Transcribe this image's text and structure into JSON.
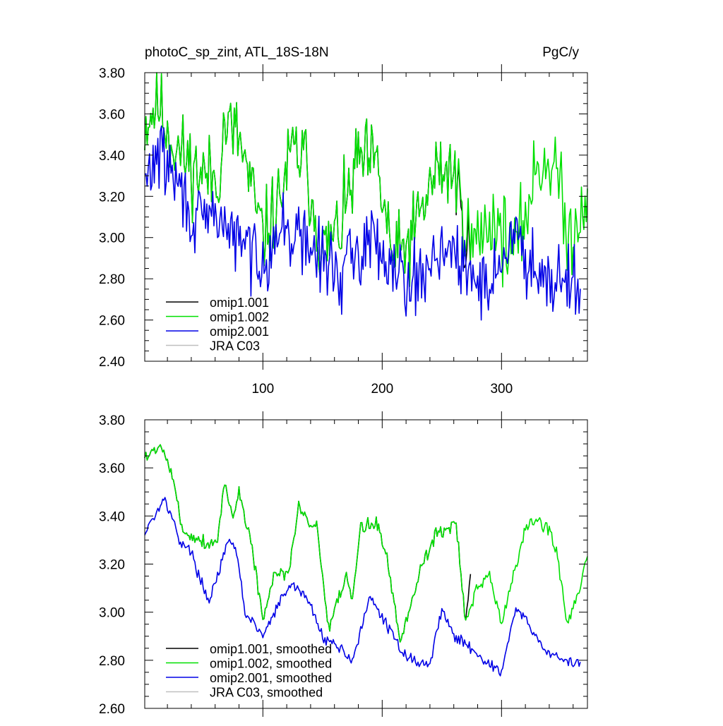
{
  "colors": {
    "omip1_001": "#000000",
    "omip1_002": "#00e000",
    "omip2_001": "#0000e6",
    "jra_c03": "#bfbfbf"
  },
  "chart_data": [
    {
      "type": "line",
      "title": "photoC_sp_zint, ATL_18S-18N",
      "units": "PgC/y",
      "xlabel": "",
      "ylabel": "",
      "xlim": [
        1,
        372
      ],
      "ylim": [
        2.4,
        3.8
      ],
      "xticks": [
        100,
        200,
        300
      ],
      "xtick_labels": [
        "100",
        "200",
        "300"
      ],
      "yticks": [
        2.4,
        2.6,
        2.8,
        3.0,
        3.2,
        3.4,
        3.6,
        3.8
      ],
      "ytick_labels": [
        "2.40",
        "2.60",
        "2.80",
        "3.00",
        "3.20",
        "3.40",
        "3.60",
        "3.80"
      ],
      "legend": {
        "placement": "bottom-left",
        "entries": [
          "omip1.001",
          "omip1.002",
          "omip2.001",
          "JRA C03"
        ]
      },
      "series": [
        {
          "name": "omip1.001",
          "key": "omip1_001",
          "n": 274,
          "seed": 11,
          "anchors": [
            [
              1,
              3.55
            ],
            [
              12,
              3.66
            ],
            [
              25,
              3.45
            ],
            [
              45,
              3.32
            ],
            [
              62,
              3.28
            ],
            [
              68,
              3.55
            ],
            [
              80,
              3.48
            ],
            [
              100,
              3.0
            ],
            [
              112,
              3.15
            ],
            [
              125,
              3.42
            ],
            [
              135,
              3.38
            ],
            [
              150,
              2.92
            ],
            [
              165,
              3.05
            ],
            [
              180,
              3.38
            ],
            [
              195,
              3.35
            ],
            [
              210,
              2.88
            ],
            [
              225,
              3.0
            ],
            [
              245,
              3.32
            ],
            [
              260,
              3.33
            ],
            [
              272,
              2.95
            ]
          ],
          "noise": 0.2
        },
        {
          "name": "omip1.002",
          "key": "omip1_002",
          "n": 372,
          "seed": 11,
          "anchors": [
            [
              1,
              3.55
            ],
            [
              12,
              3.66
            ],
            [
              25,
              3.45
            ],
            [
              45,
              3.32
            ],
            [
              62,
              3.28
            ],
            [
              68,
              3.55
            ],
            [
              80,
              3.48
            ],
            [
              100,
              3.0
            ],
            [
              112,
              3.15
            ],
            [
              125,
              3.42
            ],
            [
              135,
              3.38
            ],
            [
              150,
              2.92
            ],
            [
              165,
              3.05
            ],
            [
              180,
              3.38
            ],
            [
              195,
              3.35
            ],
            [
              210,
              2.88
            ],
            [
              225,
              3.0
            ],
            [
              245,
              3.32
            ],
            [
              260,
              3.33
            ],
            [
              275,
              2.95
            ],
            [
              292,
              3.1
            ],
            [
              312,
              2.92
            ],
            [
              330,
              3.35
            ],
            [
              345,
              3.38
            ],
            [
              355,
              2.98
            ],
            [
              372,
              3.22
            ]
          ],
          "noise": 0.2
        },
        {
          "name": "omip2.001",
          "key": "omip2_001",
          "n": 366,
          "seed": 29,
          "anchors": [
            [
              1,
              3.25
            ],
            [
              12,
              3.42
            ],
            [
              25,
              3.3
            ],
            [
              45,
              3.05
            ],
            [
              62,
              3.12
            ],
            [
              75,
              3.0
            ],
            [
              100,
              2.9
            ],
            [
              118,
              3.05
            ],
            [
              140,
              2.95
            ],
            [
              165,
              2.82
            ],
            [
              190,
              3.0
            ],
            [
              215,
              2.85
            ],
            [
              230,
              2.78
            ],
            [
              250,
              2.98
            ],
            [
              270,
              2.82
            ],
            [
              290,
              2.78
            ],
            [
              310,
              3.0
            ],
            [
              330,
              2.85
            ],
            [
              366,
              2.78
            ]
          ],
          "noise": 0.17
        }
      ]
    },
    {
      "type": "line",
      "title": "",
      "xlabel": "",
      "ylabel": "",
      "xlim": [
        1,
        372
      ],
      "ylim": [
        2.6,
        3.8
      ],
      "xticks": [
        100,
        200,
        300
      ],
      "yticks": [
        2.6,
        2.8,
        3.0,
        3.2,
        3.4,
        3.6,
        3.8
      ],
      "ytick_labels": [
        "2.60",
        "2.80",
        "3.00",
        "3.20",
        "3.40",
        "3.60",
        "3.80"
      ],
      "legend": {
        "placement": "bottom-left",
        "entries": [
          "omip1.001, smoothed",
          "omip1.002, smoothed",
          "omip2.001, smoothed",
          "JRA C03, smoothed"
        ]
      },
      "series": [
        {
          "name": "omip1.001, smoothed",
          "key": "omip1_001",
          "n": 274,
          "seed": 5,
          "anchors": [
            [
              1,
              3.65
            ],
            [
              10,
              3.67
            ],
            [
              16,
              3.7
            ],
            [
              25,
              3.55
            ],
            [
              32,
              3.35
            ],
            [
              40,
              3.32
            ],
            [
              55,
              3.28
            ],
            [
              62,
              3.3
            ],
            [
              68,
              3.55
            ],
            [
              75,
              3.38
            ],
            [
              80,
              3.5
            ],
            [
              90,
              3.3
            ],
            [
              100,
              2.97
            ],
            [
              110,
              3.15
            ],
            [
              122,
              3.17
            ],
            [
              130,
              3.45
            ],
            [
              140,
              3.35
            ],
            [
              145,
              3.38
            ],
            [
              155,
              2.92
            ],
            [
              170,
              3.15
            ],
            [
              175,
              3.05
            ],
            [
              182,
              3.35
            ],
            [
              195,
              3.38
            ],
            [
              205,
              3.2
            ],
            [
              215,
              2.88
            ],
            [
              225,
              3.05
            ],
            [
              232,
              3.18
            ],
            [
              245,
              3.33
            ],
            [
              255,
              3.35
            ],
            [
              262,
              3.37
            ],
            [
              270,
              2.95
            ],
            [
              274,
              3.15
            ]
          ],
          "noise": 0.03
        },
        {
          "name": "omip1.002, smoothed",
          "key": "omip1_002",
          "n": 372,
          "seed": 5,
          "anchors": [
            [
              1,
              3.65
            ],
            [
              10,
              3.67
            ],
            [
              16,
              3.7
            ],
            [
              25,
              3.55
            ],
            [
              32,
              3.35
            ],
            [
              40,
              3.32
            ],
            [
              55,
              3.28
            ],
            [
              62,
              3.3
            ],
            [
              68,
              3.55
            ],
            [
              75,
              3.38
            ],
            [
              80,
              3.5
            ],
            [
              90,
              3.3
            ],
            [
              100,
              2.97
            ],
            [
              110,
              3.15
            ],
            [
              122,
              3.17
            ],
            [
              130,
              3.45
            ],
            [
              140,
              3.35
            ],
            [
              145,
              3.38
            ],
            [
              155,
              2.92
            ],
            [
              170,
              3.15
            ],
            [
              175,
              3.05
            ],
            [
              182,
              3.35
            ],
            [
              195,
              3.38
            ],
            [
              205,
              3.2
            ],
            [
              215,
              2.88
            ],
            [
              225,
              3.05
            ],
            [
              232,
              3.18
            ],
            [
              245,
              3.33
            ],
            [
              255,
              3.35
            ],
            [
              262,
              3.37
            ],
            [
              270,
              2.95
            ],
            [
              280,
              3.1
            ],
            [
              290,
              3.15
            ],
            [
              300,
              2.95
            ],
            [
              310,
              3.15
            ],
            [
              320,
              3.35
            ],
            [
              330,
              3.38
            ],
            [
              340,
              3.35
            ],
            [
              348,
              3.2
            ],
            [
              355,
              2.95
            ],
            [
              365,
              3.1
            ],
            [
              372,
              3.22
            ]
          ],
          "noise": 0.03
        },
        {
          "name": "omip2.001, smoothed",
          "key": "omip2_001",
          "n": 366,
          "seed": 17,
          "anchors": [
            [
              1,
              3.32
            ],
            [
              5,
              3.38
            ],
            [
              10,
              3.4
            ],
            [
              16,
              3.48
            ],
            [
              22,
              3.42
            ],
            [
              30,
              3.3
            ],
            [
              40,
              3.25
            ],
            [
              50,
              3.1
            ],
            [
              55,
              3.05
            ],
            [
              65,
              3.2
            ],
            [
              72,
              3.3
            ],
            [
              78,
              3.25
            ],
            [
              85,
              3.0
            ],
            [
              100,
              2.9
            ],
            [
              115,
              3.05
            ],
            [
              125,
              3.12
            ],
            [
              138,
              3.05
            ],
            [
              150,
              2.9
            ],
            [
              165,
              2.85
            ],
            [
              175,
              2.8
            ],
            [
              190,
              3.06
            ],
            [
              200,
              2.98
            ],
            [
              215,
              2.85
            ],
            [
              225,
              2.8
            ],
            [
              240,
              2.78
            ],
            [
              250,
              3.02
            ],
            [
              260,
              2.9
            ],
            [
              275,
              2.85
            ],
            [
              290,
              2.78
            ],
            [
              300,
              2.75
            ],
            [
              312,
              3.02
            ],
            [
              322,
              2.95
            ],
            [
              335,
              2.85
            ],
            [
              350,
              2.8
            ],
            [
              366,
              2.78
            ]
          ],
          "noise": 0.022
        }
      ]
    }
  ]
}
